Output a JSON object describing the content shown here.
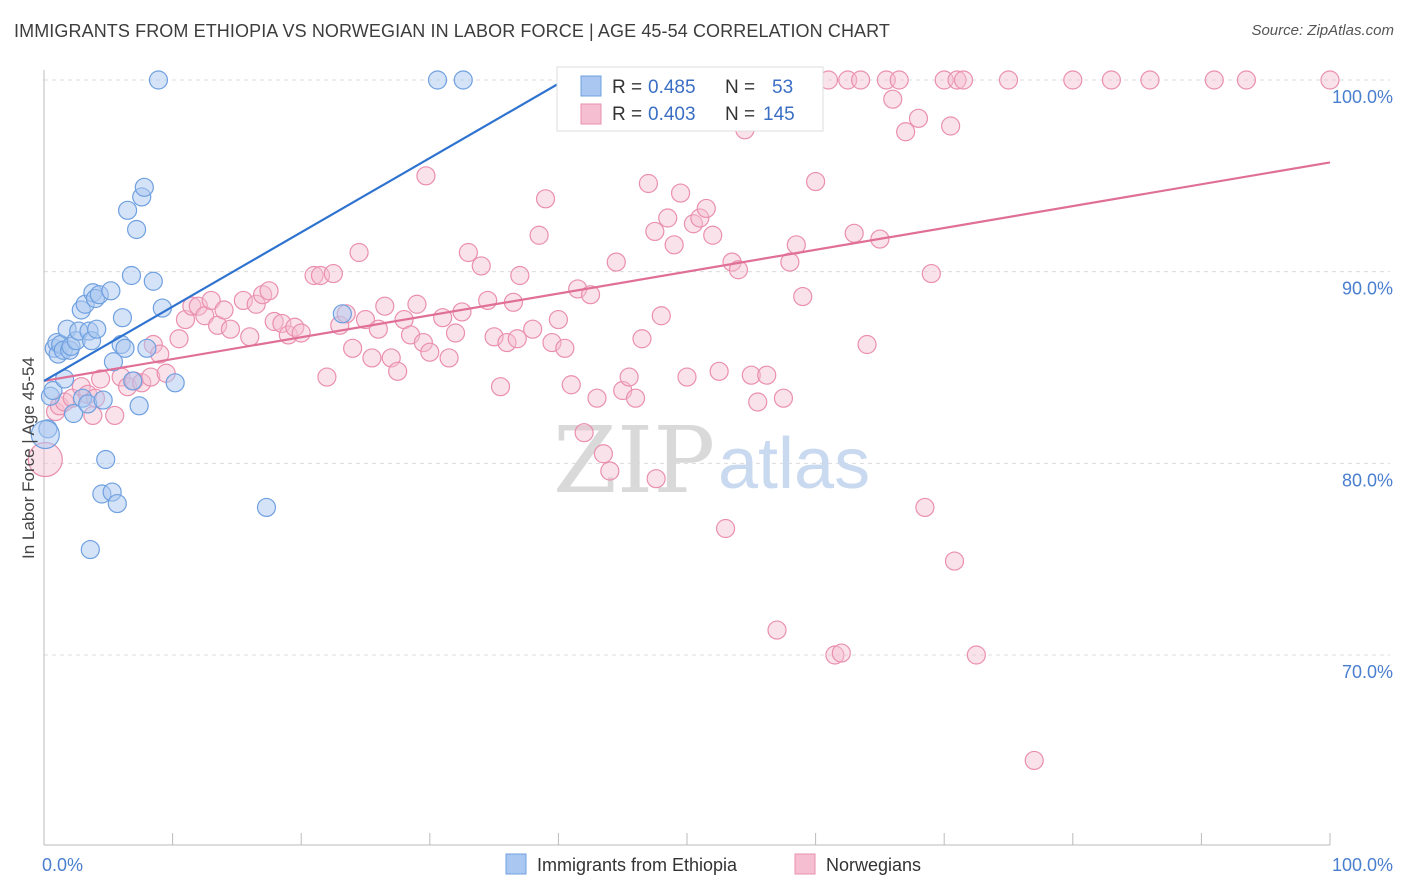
{
  "title": "IMMIGRANTS FROM ETHIOPIA VS NORWEGIAN IN LABOR FORCE | AGE 45-54 CORRELATION CHART",
  "source": "Source: ZipAtlas.com",
  "watermark": {
    "zip": "ZIP",
    "atlas": "atlas"
  },
  "colors": {
    "blue": "#6fa0e0",
    "blue_fill": "#a9c7f0",
    "blue_line": "#2f73d0",
    "pink": "#ea8fae",
    "pink_fill": "#f5bfd1",
    "pink_line": "#e06f98",
    "tick_label": "#4a7fcf"
  },
  "legend": {
    "rows": [
      {
        "r_label": "R =",
        "r_value": "0.485",
        "n_label": "N =",
        "n_value": "53"
      },
      {
        "r_label": "R =",
        "r_value": "0.403",
        "n_label": "N =",
        "n_value": "145"
      }
    ]
  },
  "bottom_legend": [
    "Immigrants from Ethiopia",
    "Norwegians"
  ],
  "chart_data": {
    "type": "scatter",
    "title": "IMMIGRANTS FROM ETHIOPIA VS NORWEGIAN IN LABOR FORCE | AGE 45-54 CORRELATION CHART",
    "xlabel": "",
    "ylabel": "In Labor Force | Age 45-54",
    "xlim": [
      0,
      100
    ],
    "ylim": [
      62,
      101
    ],
    "x_tick_labels": [
      "0.0%",
      "100.0%"
    ],
    "y_ticks": [
      70,
      80,
      90,
      100
    ],
    "y_tick_labels": [
      "70.0%",
      "80.0%",
      "90.0%",
      "100.0%"
    ],
    "grid": true,
    "legend_position": "top-center",
    "series": [
      {
        "name": "Immigrants from Ethiopia",
        "r": 0.485,
        "n": 53,
        "trend": {
          "x": [
            0,
            40.5
          ],
          "y": [
            84.3,
            100
          ]
        },
        "points": [
          [
            0.3,
            81.8
          ],
          [
            0.5,
            83.5
          ],
          [
            0.7,
            83.8
          ],
          [
            0.8,
            86
          ],
          [
            1,
            86.3
          ],
          [
            1.1,
            85.7
          ],
          [
            1.3,
            86.2
          ],
          [
            1.5,
            85.9
          ],
          [
            1.6,
            84.4
          ],
          [
            1.8,
            87
          ],
          [
            2,
            85.9
          ],
          [
            2.1,
            86.1
          ],
          [
            2.3,
            82.6
          ],
          [
            2.5,
            86.4
          ],
          [
            2.7,
            86.9
          ],
          [
            2.9,
            88
          ],
          [
            3,
            83.4
          ],
          [
            3.2,
            88.3
          ],
          [
            3.4,
            83.1
          ],
          [
            3.5,
            86.9
          ],
          [
            3.6,
            75.5
          ],
          [
            3.7,
            86.4
          ],
          [
            3.8,
            88.9
          ],
          [
            4,
            88.6
          ],
          [
            4.1,
            87
          ],
          [
            4.3,
            88.8
          ],
          [
            4.5,
            78.4
          ],
          [
            4.6,
            83.3
          ],
          [
            4.8,
            80.2
          ],
          [
            5.2,
            89
          ],
          [
            5.3,
            78.5
          ],
          [
            5.4,
            85.3
          ],
          [
            5.7,
            77.9
          ],
          [
            6,
            86.2
          ],
          [
            6.1,
            87.6
          ],
          [
            6.3,
            86
          ],
          [
            6.5,
            93.2
          ],
          [
            6.8,
            89.8
          ],
          [
            6.9,
            84.3
          ],
          [
            7.2,
            92.2
          ],
          [
            7.4,
            83
          ],
          [
            7.6,
            93.9
          ],
          [
            7.8,
            94.4
          ],
          [
            8,
            86
          ],
          [
            8.5,
            89.5
          ],
          [
            8.9,
            100
          ],
          [
            9.2,
            88.1
          ],
          [
            10.2,
            84.2
          ],
          [
            17.3,
            77.7
          ],
          [
            23.2,
            87.8
          ],
          [
            30.6,
            100
          ],
          [
            32.6,
            100
          ],
          [
            0.1,
            81.5
          ]
        ]
      },
      {
        "name": "Norwegians",
        "r": 0.403,
        "n": 145,
        "trend": {
          "x": [
            0,
            100
          ],
          "y": [
            84.3,
            95.7
          ]
        },
        "points": [
          [
            0.1,
            80.2
          ],
          [
            0.9,
            82.7
          ],
          [
            1.2,
            83
          ],
          [
            1.6,
            83.2
          ],
          [
            2.2,
            83.4
          ],
          [
            2.9,
            84
          ],
          [
            3.4,
            83.6
          ],
          [
            3.8,
            82.5
          ],
          [
            4,
            83.4
          ],
          [
            4.4,
            84.4
          ],
          [
            5.5,
            82.5
          ],
          [
            6,
            84.5
          ],
          [
            6.5,
            84
          ],
          [
            7,
            84.3
          ],
          [
            7.6,
            84.2
          ],
          [
            8.3,
            84.5
          ],
          [
            8.5,
            86.2
          ],
          [
            9,
            85.7
          ],
          [
            9.5,
            84.7
          ],
          [
            10.5,
            86.5
          ],
          [
            11,
            87.5
          ],
          [
            11.5,
            88.2
          ],
          [
            12,
            88.2
          ],
          [
            12.5,
            87.7
          ],
          [
            13,
            88.5
          ],
          [
            13.5,
            87.2
          ],
          [
            14,
            88
          ],
          [
            14.5,
            87
          ],
          [
            15.5,
            88.5
          ],
          [
            16,
            86.6
          ],
          [
            16.5,
            88.3
          ],
          [
            17,
            88.8
          ],
          [
            17.5,
            89
          ],
          [
            17.9,
            87.4
          ],
          [
            18.5,
            87.3
          ],
          [
            19,
            86.7
          ],
          [
            19.5,
            87.1
          ],
          [
            20,
            86.8
          ],
          [
            21,
            89.8
          ],
          [
            21.5,
            89.8
          ],
          [
            22,
            84.5
          ],
          [
            22.5,
            89.9
          ],
          [
            23,
            87.2
          ],
          [
            23.5,
            87.8
          ],
          [
            24,
            86
          ],
          [
            24.5,
            91
          ],
          [
            25,
            87.5
          ],
          [
            25.5,
            85.5
          ],
          [
            26,
            87
          ],
          [
            26.5,
            88.2
          ],
          [
            27,
            85.5
          ],
          [
            27.5,
            84.8
          ],
          [
            28,
            87.5
          ],
          [
            28.5,
            86.7
          ],
          [
            29,
            88.3
          ],
          [
            29.5,
            86.3
          ],
          [
            30,
            85.8
          ],
          [
            31,
            87.6
          ],
          [
            31.5,
            85.5
          ],
          [
            32,
            86.8
          ],
          [
            32.5,
            87.9
          ],
          [
            33,
            91
          ],
          [
            34,
            90.3
          ],
          [
            34.5,
            88.5
          ],
          [
            35,
            86.6
          ],
          [
            35.5,
            84
          ],
          [
            36,
            86.3
          ],
          [
            36.5,
            88.4
          ],
          [
            37,
            89.8
          ],
          [
            38,
            87
          ],
          [
            38.5,
            91.9
          ],
          [
            39,
            93.8
          ],
          [
            39.5,
            86.3
          ],
          [
            40,
            87.5
          ],
          [
            40.5,
            86
          ],
          [
            41,
            84.1
          ],
          [
            41.5,
            89.1
          ],
          [
            42,
            81.6
          ],
          [
            42.5,
            88.8
          ],
          [
            43,
            83.4
          ],
          [
            43.5,
            80.5
          ],
          [
            44,
            79.6
          ],
          [
            44.5,
            90.5
          ],
          [
            45,
            83.8
          ],
          [
            45.5,
            84.5
          ],
          [
            46,
            83.4
          ],
          [
            46.5,
            86.5
          ],
          [
            47,
            94.6
          ],
          [
            47.5,
            92.1
          ],
          [
            48,
            87.7
          ],
          [
            48.5,
            92.8
          ],
          [
            49,
            91.4
          ],
          [
            49.5,
            94.1
          ],
          [
            50,
            84.5
          ],
          [
            50.5,
            92.5
          ],
          [
            51,
            92.8
          ],
          [
            51.5,
            93.3
          ],
          [
            52,
            91.9
          ],
          [
            52.5,
            84.8
          ],
          [
            53,
            76.6
          ],
          [
            53.5,
            90.5
          ],
          [
            54,
            90.1
          ],
          [
            54.5,
            97.4
          ],
          [
            55,
            84.6
          ],
          [
            55.5,
            83.2
          ],
          [
            56,
            100
          ],
          [
            57,
            71.3
          ],
          [
            57.5,
            83.4
          ],
          [
            58,
            90.5
          ],
          [
            58.5,
            91.4
          ],
          [
            59,
            88.7
          ],
          [
            60,
            94.7
          ],
          [
            61,
            100
          ],
          [
            61.5,
            70
          ],
          [
            62,
            70.1
          ],
          [
            62.5,
            100
          ],
          [
            63,
            92
          ],
          [
            63.5,
            100
          ],
          [
            64,
            86.2
          ],
          [
            65,
            91.7
          ],
          [
            65.5,
            100
          ],
          [
            66,
            99
          ],
          [
            66.5,
            100
          ],
          [
            67,
            97.3
          ],
          [
            68,
            98
          ],
          [
            68.5,
            77.7
          ],
          [
            69,
            89.9
          ],
          [
            70,
            100
          ],
          [
            70.5,
            97.6
          ],
          [
            70.8,
            74.9
          ],
          [
            71,
            100
          ],
          [
            71.5,
            100
          ],
          [
            72.5,
            70
          ],
          [
            75,
            100
          ],
          [
            77,
            64.5
          ],
          [
            80,
            100
          ],
          [
            83,
            100
          ],
          [
            86,
            100
          ],
          [
            91,
            100
          ],
          [
            93.5,
            100
          ],
          [
            100,
            100
          ],
          [
            47.6,
            79.2
          ],
          [
            29.7,
            95
          ],
          [
            36.8,
            86.5
          ],
          [
            56.2,
            84.6
          ]
        ]
      }
    ]
  }
}
